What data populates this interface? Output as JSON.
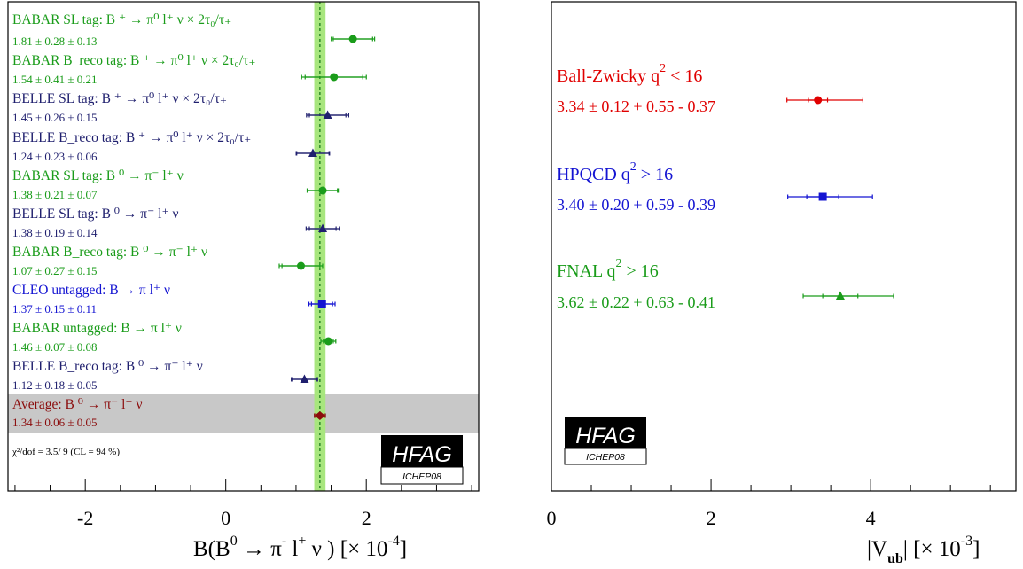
{
  "colors": {
    "green": "#1a9c1a",
    "navy": "#1f1f6e",
    "blue": "#1414d2",
    "red": "#e00000",
    "darkred": "#8b0c0c",
    "band": "#a8e67e",
    "avgband": "#c8c8c8"
  },
  "logo": {
    "main": "HFAG",
    "sub": "ICHEP08"
  },
  "chart_data": [
    {
      "type": "scatter",
      "xlabel_main": "B(B",
      "xlabel_sup": "0",
      "xlabel_arrow": " → π",
      "xlabel_minus": "-",
      "xlabel_l": " l",
      "xlabel_plus": "+",
      "xlabel_nu": " ν ) [× 10",
      "xlabel_exp": "-4",
      "xlabel_close": "]",
      "xlim": [
        -3.1,
        3.6
      ],
      "xticks": [
        "-2",
        "0",
        "2"
      ],
      "tick_values": [
        -2,
        0,
        2
      ],
      "average_value": 1.34,
      "average_band": [
        1.26,
        1.42
      ],
      "chi2": "χ²/dof = 3.5/ 9 (CL =  94 %)",
      "points": [
        {
          "label": "BABAR SL tag: B ⁺ → π⁰ l⁺ ν × 2τ₀/τ₊",
          "value_text": "1.81 ± 0.28 ± 0.13",
          "value": 1.81,
          "stat": 0.28,
          "syst": 0.13,
          "color": "green",
          "marker": "circle"
        },
        {
          "label": "BABAR B_reco tag: B ⁺ → π⁰ l⁺ ν × 2τ₀/τ₊",
          "value_text": "1.54 ± 0.41 ± 0.21",
          "value": 1.54,
          "stat": 0.41,
          "syst": 0.21,
          "color": "green",
          "marker": "circle"
        },
        {
          "label": "BELLE SL tag: B ⁺ → π⁰ l⁺ ν × 2τ₀/τ₊",
          "value_text": "1.45 ± 0.26 ± 0.15",
          "value": 1.45,
          "stat": 0.26,
          "syst": 0.15,
          "color": "navy",
          "marker": "triangle"
        },
        {
          "label": "BELLE B_reco tag: B ⁺ → π⁰ l⁺ ν × 2τ₀/τ₊",
          "value_text": "1.24 ± 0.23 ± 0.06",
          "value": 1.24,
          "stat": 0.23,
          "syst": 0.06,
          "color": "navy",
          "marker": "triangle"
        },
        {
          "label": "BABAR SL tag: B ⁰ → π⁻ l⁺ ν",
          "value_text": "1.38 ± 0.21 ± 0.07",
          "value": 1.38,
          "stat": 0.21,
          "syst": 0.07,
          "color": "green",
          "marker": "circle"
        },
        {
          "label": "BELLE SL tag: B ⁰ → π⁻ l⁺ ν",
          "value_text": "1.38 ± 0.19 ± 0.14",
          "value": 1.38,
          "stat": 0.19,
          "syst": 0.14,
          "color": "navy",
          "marker": "triangle"
        },
        {
          "label": "BABAR B_reco tag: B ⁰ → π⁻ l⁺ ν",
          "value_text": "1.07 ± 0.27 ± 0.15",
          "value": 1.07,
          "stat": 0.27,
          "syst": 0.15,
          "color": "green",
          "marker": "circle"
        },
        {
          "label": "CLEO untagged: B   → π l⁺ ν",
          "value_text": "1.37 ± 0.15 ± 0.11",
          "value": 1.37,
          "stat": 0.15,
          "syst": 0.11,
          "color": "blue",
          "marker": "square"
        },
        {
          "label": "BABAR untagged: B   → π l⁺ ν",
          "value_text": "1.46 ± 0.07 ± 0.08",
          "value": 1.46,
          "stat": 0.07,
          "syst": 0.08,
          "color": "green",
          "marker": "circle"
        },
        {
          "label": "BELLE B_reco tag: B ⁰ → π⁻ l⁺ ν",
          "value_text": "1.12 ± 0.18 ± 0.05",
          "value": 1.12,
          "stat": 0.18,
          "syst": 0.05,
          "color": "navy",
          "marker": "triangle"
        },
        {
          "label": "Average: B ⁰ → π⁻ l⁺ ν",
          "value_text": "1.34 ± 0.06 ± 0.05",
          "value": 1.34,
          "stat": 0.06,
          "syst": 0.05,
          "color": "darkred",
          "marker": "diamond"
        }
      ]
    },
    {
      "type": "scatter",
      "xlabel": "|V",
      "xlabel_sub": "ub",
      "xlabel_rest": "|  [× 10",
      "xlabel_exp": "-3",
      "xlabel_close": "]",
      "xlim": [
        0,
        5.82
      ],
      "xticks": [
        "0",
        "2",
        "4"
      ],
      "tick_values": [
        0,
        2,
        4
      ],
      "points": [
        {
          "name": "Ball-Zwicky q",
          "sup": "2",
          "cut": " < 16",
          "value_text": "3.34 ± 0.12 + 0.55 - 0.37",
          "value": 3.34,
          "stat": 0.12,
          "err_up": 0.55,
          "err_down": 0.37,
          "color": "red",
          "marker": "circle"
        },
        {
          "name": "HPQCD q",
          "sup": "2",
          "cut": " > 16",
          "value_text": "3.40 ± 0.20 + 0.59 - 0.39",
          "value": 3.4,
          "stat": 0.2,
          "err_up": 0.59,
          "err_down": 0.39,
          "color": "blue",
          "marker": "square"
        },
        {
          "name": "FNAL q",
          "sup": "2",
          "cut": " > 16",
          "value_text": "3.62 ± 0.22 + 0.63 - 0.41",
          "value": 3.62,
          "stat": 0.22,
          "err_up": 0.63,
          "err_down": 0.41,
          "color": "green",
          "marker": "triangle"
        }
      ]
    }
  ]
}
